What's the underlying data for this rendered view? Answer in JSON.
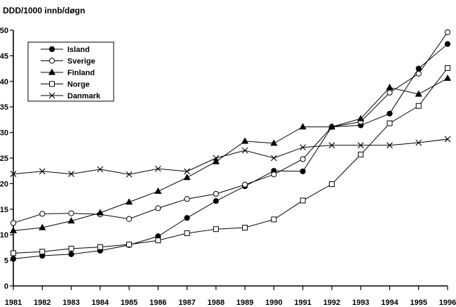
{
  "chart_data": {
    "type": "line",
    "title": "DDD/1000 innb/døgn",
    "xlabel": "",
    "ylabel": "",
    "x": [
      "1981",
      "1982",
      "1983",
      "1984",
      "1985",
      "1986",
      "1987",
      "1988",
      "1989",
      "1990",
      "1991",
      "1992",
      "1993",
      "1994",
      "1995",
      "1996"
    ],
    "ylim": [
      0,
      50
    ],
    "yticks": [
      "0",
      "5",
      "10",
      "15",
      "20",
      "25",
      "30",
      "35",
      "40",
      "45",
      "50"
    ],
    "grid": false,
    "legend_position": "top-left",
    "series": [
      {
        "name": "Island",
        "marker": "filled-circle",
        "values": [
          5.3,
          5.9,
          6.2,
          6.9,
          8.0,
          9.7,
          13.3,
          16.6,
          19.5,
          22.5,
          22.4,
          31.1,
          31.4,
          33.7,
          42.5,
          47.3
        ]
      },
      {
        "name": "Sverige",
        "marker": "open-circle",
        "values": [
          12.3,
          14.1,
          14.2,
          14.0,
          13.1,
          15.2,
          17.0,
          18.0,
          19.8,
          21.8,
          24.8,
          31.1,
          32.1,
          37.8,
          41.5,
          49.6
        ]
      },
      {
        "name": "Finland",
        "marker": "filled-triangle",
        "values": [
          10.8,
          11.4,
          12.7,
          14.3,
          16.4,
          18.5,
          21.2,
          24.3,
          28.3,
          27.9,
          31.1,
          31.1,
          32.7,
          38.8,
          37.5,
          40.6
        ]
      },
      {
        "name": "Norge",
        "marker": "open-square",
        "values": [
          6.4,
          6.7,
          7.3,
          7.6,
          8.1,
          8.9,
          10.3,
          11.1,
          11.4,
          13.0,
          16.7,
          19.9,
          25.7,
          31.8,
          35.2,
          42.6
        ]
      },
      {
        "name": "Danmark",
        "marker": "cross",
        "values": [
          21.9,
          22.4,
          21.9,
          22.8,
          21.8,
          22.9,
          22.4,
          25.0,
          26.5,
          25.0,
          27.1,
          27.5,
          27.5,
          27.5,
          28.0,
          28.7
        ]
      }
    ]
  }
}
